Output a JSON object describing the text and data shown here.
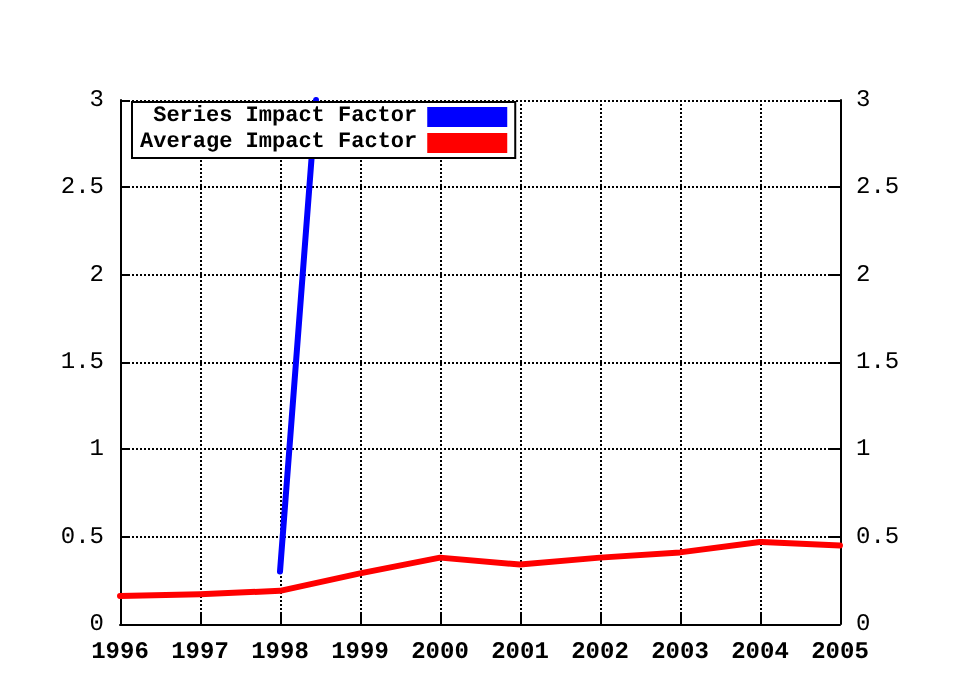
{
  "chart_data": {
    "type": "line",
    "x": [
      1996,
      1997,
      1998,
      1999,
      2000,
      2001,
      2002,
      2003,
      2004,
      2005
    ],
    "series": [
      {
        "name": "Series Impact Factor",
        "color": "#0000ff",
        "x": [
          1998,
          1998.45
        ],
        "values": [
          0.3,
          3
        ]
      },
      {
        "name": "Average Impact Factor",
        "color": "#ff0000",
        "values": [
          0.16,
          0.17,
          0.19,
          0.29,
          0.38,
          0.34,
          0.38,
          0.41,
          0.47,
          0.45
        ]
      }
    ],
    "xlim": [
      1996,
      2005
    ],
    "xticks": [
      1996,
      1997,
      1998,
      1999,
      2000,
      2001,
      2002,
      2003,
      2004,
      2005
    ],
    "ylim": [
      0,
      3
    ],
    "yticks": [
      0,
      0.5,
      1,
      1.5,
      2,
      2.5,
      3
    ],
    "y2lim": [
      0,
      3
    ],
    "y2ticks": [
      0,
      0.5,
      1,
      1.5,
      2,
      2.5,
      3
    ],
    "grid": true,
    "legend": "top left",
    "line_style": "solid",
    "marker": "none"
  }
}
